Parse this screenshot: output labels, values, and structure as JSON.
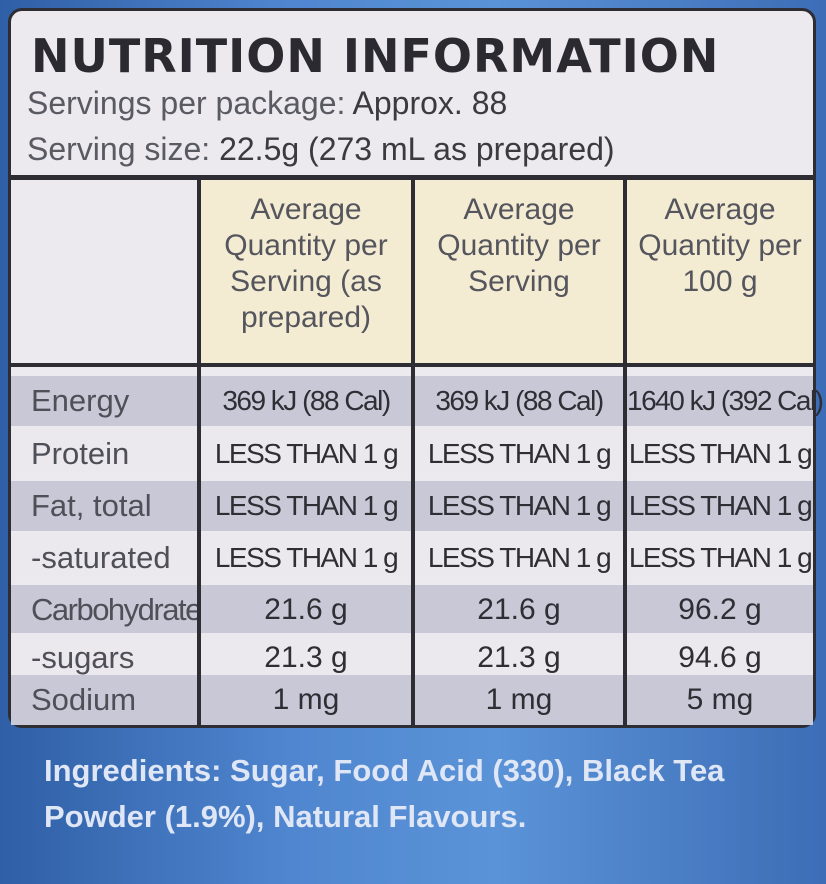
{
  "panel": {
    "title": "NUTRITION INFORMATION",
    "servings_label": "Servings per package:",
    "servings_value": "Approx. 88",
    "size_label": "Serving size:",
    "size_value": "22.5g (273 mL as prepared)"
  },
  "columns": [
    "Average Quantity per Serving (as prepared)",
    "Average Quantity per Serving",
    "Average Quantity per 100 g"
  ],
  "rows": [
    {
      "label": "Energy",
      "v1": "369 kJ (88 Cal)",
      "v2": "369 kJ (88 Cal)",
      "v3": "1640 kJ (392 Cal)"
    },
    {
      "label": "Protein",
      "v1": "LESS THAN 1 g",
      "v2": "LESS THAN 1 g",
      "v3": "LESS THAN 1 g"
    },
    {
      "label": "Fat, total",
      "v1": "LESS THAN 1 g",
      "v2": "LESS THAN 1 g",
      "v3": "LESS THAN 1 g"
    },
    {
      "label": "-saturated",
      "v1": "LESS THAN 1 g",
      "v2": "LESS THAN 1 g",
      "v3": "LESS THAN 1 g"
    },
    {
      "label": "Carbohydrate",
      "v1": "21.6 g",
      "v2": "21.6 g",
      "v3": "96.2 g"
    },
    {
      "label": "-sugars",
      "v1": "21.3 g",
      "v2": "21.3 g",
      "v3": "94.6 g"
    },
    {
      "label": "Sodium",
      "v1": "1 mg",
      "v2": "1 mg",
      "v3": "5 mg"
    }
  ],
  "ingredients": "Ingredients: Sugar, Food Acid (330), Black Tea Powder (1.9%), Natural Flavours."
}
